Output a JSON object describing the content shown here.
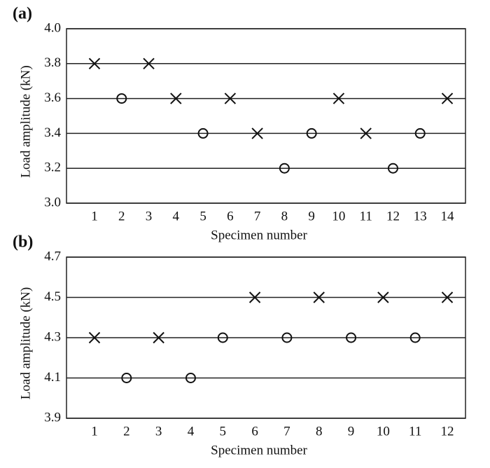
{
  "chart_data": [
    {
      "type": "scatter",
      "label": "(a)",
      "x_label": "Specimen number",
      "y_label": "Load amplitude (kN)",
      "categories": [
        1,
        2,
        3,
        4,
        5,
        6,
        7,
        8,
        9,
        10,
        11,
        12,
        13,
        14
      ],
      "values": [
        3.8,
        3.6,
        3.8,
        3.6,
        3.4,
        3.6,
        3.4,
        3.2,
        3.4,
        3.6,
        3.4,
        3.2,
        3.4,
        3.6
      ],
      "markers": [
        "x",
        "o",
        "x",
        "x",
        "o",
        "x",
        "x",
        "o",
        "o",
        "x",
        "x",
        "o",
        "o",
        "x"
      ],
      "color": "#111111",
      "ylim": [
        3.0,
        4.0
      ],
      "yticks": [
        {
          "value": 3.0,
          "label": "3.0"
        },
        3.2,
        3.4,
        3.6,
        3.8,
        {
          "value": 4.0,
          "label": "4.0"
        }
      ],
      "grid": true
    },
    {
      "type": "scatter",
      "label": "(b)",
      "x_label": "Specimen number",
      "y_label": "Load amplitude (kN)",
      "categories": [
        1,
        2,
        3,
        4,
        5,
        6,
        7,
        8,
        9,
        10,
        11,
        12
      ],
      "values": [
        4.3,
        4.1,
        4.3,
        4.1,
        4.3,
        4.5,
        4.3,
        4.5,
        4.3,
        4.5,
        4.3,
        4.5
      ],
      "markers": [
        "x",
        "o",
        "x",
        "o",
        "o",
        "x",
        "o",
        "x",
        "o",
        "x",
        "o",
        "x"
      ],
      "color": "#111111",
      "ylim": [
        3.9,
        4.7
      ],
      "yticks": [
        3.9,
        4.1,
        4.3,
        4.5,
        4.7
      ],
      "grid": true
    }
  ]
}
